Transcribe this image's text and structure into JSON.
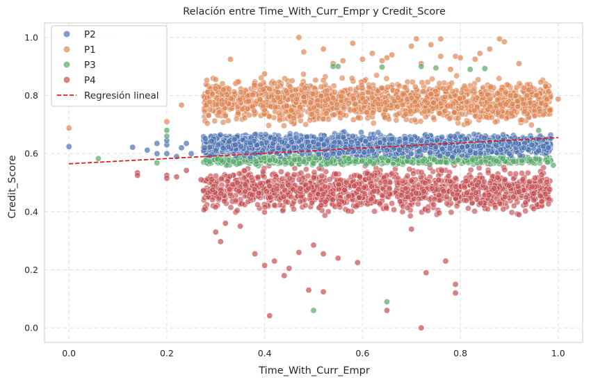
{
  "chart_data": {
    "type": "scatter",
    "title": "Relación entre Time_With_Curr_Empr y Credit_Score",
    "xlabel": "Time_With_Curr_Empr",
    "ylabel": "Credit_Score",
    "xlim": [
      -0.05,
      1.05
    ],
    "ylim": [
      -0.05,
      1.05
    ],
    "xticks": [
      "0.0",
      "0.2",
      "0.4",
      "0.6",
      "0.8",
      "1.0"
    ],
    "yticks": [
      "0.0",
      "0.2",
      "0.4",
      "0.6",
      "0.8",
      "1.0"
    ],
    "grid": true,
    "legend_position": "top-left",
    "series": [
      {
        "name": "P2",
        "color": "#4c72b0",
        "points": [
          [
            0.0,
            0.624
          ],
          [
            0.13,
            0.622
          ],
          [
            0.16,
            0.612
          ],
          [
            0.18,
            0.6
          ],
          [
            0.18,
            0.635
          ],
          [
            0.2,
            0.6
          ],
          [
            0.2,
            0.63
          ],
          [
            0.2,
            0.645
          ],
          [
            0.22,
            0.59
          ],
          [
            0.23,
            0.62
          ],
          [
            0.24,
            0.635
          ],
          [
            0.25,
            0.6
          ],
          [
            0.3,
            0.61
          ],
          [
            0.34,
            0.63
          ],
          [
            0.38,
            0.6
          ],
          [
            0.42,
            0.65
          ],
          [
            0.46,
            0.62
          ],
          [
            0.5,
            0.64
          ],
          [
            0.54,
            0.6
          ],
          [
            0.58,
            0.66
          ],
          [
            0.62,
            0.61
          ],
          [
            0.66,
            0.65
          ],
          [
            0.7,
            0.6
          ],
          [
            0.74,
            0.63
          ],
          [
            0.78,
            0.66
          ],
          [
            0.82,
            0.61
          ],
          [
            0.86,
            0.64
          ],
          [
            0.9,
            0.6
          ],
          [
            0.93,
            0.62
          ],
          [
            0.96,
            0.65
          ],
          [
            0.96,
            0.61
          ],
          [
            0.97,
            0.625
          ],
          [
            0.98,
            0.62
          ]
        ]
      },
      {
        "name": "P1",
        "color": "#dd8452",
        "points": [
          [
            0.0,
            0.688
          ],
          [
            0.2,
            0.71
          ],
          [
            0.23,
            0.767
          ],
          [
            0.33,
            0.925
          ],
          [
            0.3,
            0.855
          ],
          [
            0.4,
            0.875
          ],
          [
            0.41,
            0.822
          ],
          [
            0.47,
            1.0
          ],
          [
            0.48,
            0.95
          ],
          [
            0.52,
            0.96
          ],
          [
            0.54,
            0.91
          ],
          [
            0.56,
            0.92
          ],
          [
            0.58,
            0.98
          ],
          [
            0.6,
            0.925
          ],
          [
            0.62,
            0.945
          ],
          [
            0.64,
            0.92
          ],
          [
            0.65,
            0.93
          ],
          [
            0.66,
            0.94
          ],
          [
            0.7,
            0.97
          ],
          [
            0.71,
            0.995
          ],
          [
            0.72,
            0.91
          ],
          [
            0.74,
            0.975
          ],
          [
            0.76,
            0.995
          ],
          [
            0.76,
            0.935
          ],
          [
            0.78,
            0.89
          ],
          [
            0.79,
            0.935
          ],
          [
            0.8,
            0.93
          ],
          [
            0.83,
            0.925
          ],
          [
            0.84,
            0.945
          ],
          [
            0.86,
            0.96
          ],
          [
            0.88,
            0.995
          ],
          [
            0.89,
            0.985
          ],
          [
            0.92,
            0.91
          ],
          [
            0.94,
            0.82
          ],
          [
            1.0,
            0.788
          ]
        ]
      },
      {
        "name": "P3",
        "color": "#55a868",
        "points": [
          [
            0.06,
            0.583
          ],
          [
            0.18,
            0.568
          ],
          [
            0.2,
            0.68
          ],
          [
            0.2,
            0.66
          ],
          [
            0.5,
            0.06
          ],
          [
            0.54,
            0.9
          ],
          [
            0.55,
            0.9
          ],
          [
            0.64,
            0.898
          ],
          [
            0.65,
            0.09
          ],
          [
            0.72,
            0.9
          ],
          [
            0.75,
            0.895
          ],
          [
            0.82,
            0.89
          ],
          [
            0.85,
            0.893
          ],
          [
            0.96,
            0.68
          ],
          [
            0.99,
            0.56
          ]
        ]
      },
      {
        "name": "P4",
        "color": "#c44e52",
        "points": [
          [
            0.14,
            0.534
          ],
          [
            0.14,
            0.525
          ],
          [
            0.2,
            0.525
          ],
          [
            0.2,
            0.515
          ],
          [
            0.22,
            0.52
          ],
          [
            0.24,
            0.542
          ],
          [
            0.27,
            0.51
          ],
          [
            0.3,
            0.33
          ],
          [
            0.31,
            0.297
          ],
          [
            0.32,
            0.36
          ],
          [
            0.35,
            0.35
          ],
          [
            0.38,
            0.255
          ],
          [
            0.4,
            0.215
          ],
          [
            0.41,
            0.042
          ],
          [
            0.42,
            0.23
          ],
          [
            0.44,
            0.18
          ],
          [
            0.45,
            0.205
          ],
          [
            0.47,
            0.26
          ],
          [
            0.49,
            0.13
          ],
          [
            0.5,
            0.285
          ],
          [
            0.52,
            0.255
          ],
          [
            0.52,
            0.124
          ],
          [
            0.55,
            0.24
          ],
          [
            0.59,
            0.225
          ],
          [
            0.65,
            0.06
          ],
          [
            0.7,
            0.34
          ],
          [
            0.72,
            0.0
          ],
          [
            0.73,
            0.19
          ],
          [
            0.77,
            0.23
          ],
          [
            0.79,
            0.15
          ],
          [
            0.79,
            0.12
          ],
          [
            0.9,
            0.49
          ],
          [
            0.92,
            0.39
          ],
          [
            0.95,
            0.44
          ],
          [
            0.95,
            0.41
          ]
        ]
      }
    ],
    "regression": {
      "name": "Regresión lineal",
      "color": "#e31a1c",
      "x": [
        0.0,
        1.0
      ],
      "y": [
        0.565,
        0.655
      ]
    },
    "clouds": [
      {
        "series": "P1",
        "x_range": [
          0.275,
          0.985
        ],
        "y_range": [
          0.68,
          0.88
        ],
        "count": 1600
      },
      {
        "series": "P4",
        "x_range": [
          0.275,
          0.985
        ],
        "y_range": [
          0.37,
          0.58
        ],
        "count": 1300
      },
      {
        "series": "P3",
        "x_range": [
          0.275,
          0.985
        ],
        "y_range": [
          0.555,
          0.6
        ],
        "count": 700
      },
      {
        "series": "P2",
        "x_range": [
          0.275,
          0.985
        ],
        "y_range": [
          0.58,
          0.68
        ],
        "count": 2200
      }
    ]
  }
}
